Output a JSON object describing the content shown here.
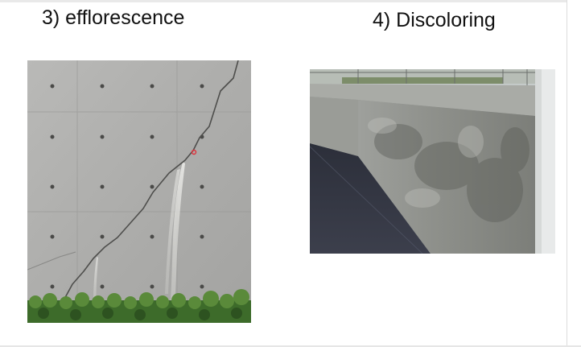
{
  "slide": {
    "items": [
      {
        "caption": "3) efflorescence",
        "photo_icon": "concrete-wall-efflorescence-photo"
      },
      {
        "caption": "4) Discoloring",
        "photo_icon": "concrete-retaining-wall-discoloring-photo"
      }
    ]
  }
}
